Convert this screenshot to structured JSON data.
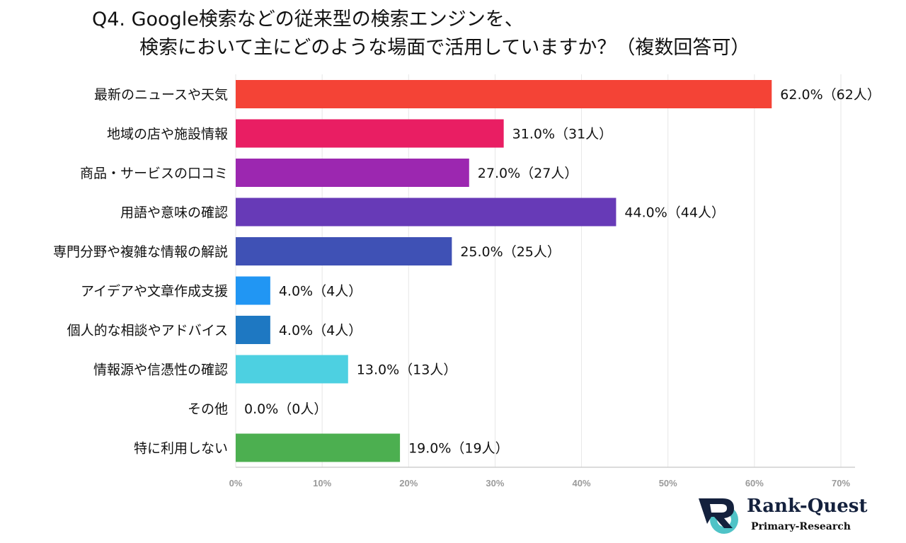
{
  "chart_data": {
    "type": "bar",
    "orientation": "horizontal",
    "title_line1": "Q4. Google検索などの従来型の検索エンジンを、",
    "title_line2": "検索において主にどのような場面で活用していますか？（複数回答可）",
    "categories": [
      "最新のニュースや天気",
      "地域の店や施設情報",
      "商品・サービスの口コミ",
      "用語や意味の確認",
      "専門分野や複雑な情報の解説",
      "アイデアや文章作成支援",
      "個人的な相談やアドバイス",
      "情報源や信憑性の確認",
      "その他",
      "特に利用しない"
    ],
    "values": [
      62.0,
      31.0,
      27.0,
      44.0,
      25.0,
      4.0,
      4.0,
      13.0,
      0.0,
      19.0
    ],
    "data_labels": [
      "62.0%（62人）",
      "31.0%（31人）",
      "27.0%（27人）",
      "44.0%（44人）",
      "25.0%（25人）",
      "4.0%（4人）",
      "4.0%（4人）",
      "13.0%（13人）",
      "0.0%（0人）",
      "19.0%（19人）"
    ],
    "colors": [
      "#F44336",
      "#E91E63",
      "#9C27B0",
      "#673AB7",
      "#3F51B5",
      "#2196F3",
      "#1E78C2",
      "#4DD0E1",
      "#9E9E9E",
      "#4CAF50"
    ],
    "xlim": [
      0,
      70
    ],
    "xticks": [
      "0%",
      "10%",
      "20%",
      "30%",
      "40%",
      "50%",
      "60%",
      "70%"
    ],
    "grid": true,
    "xlabel": "",
    "ylabel": ""
  },
  "logo": {
    "brand": "Rank-Quest",
    "sub": "Primary-Research"
  }
}
